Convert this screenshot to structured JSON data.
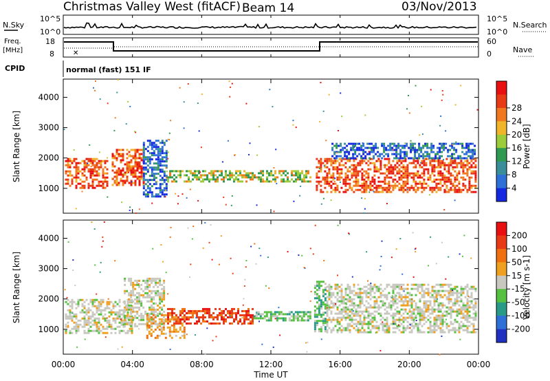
{
  "header": {
    "station": "Christmas Valley West (fitACF)",
    "beam": "Beam 14",
    "date": "03/Nov/2013"
  },
  "status_panels": {
    "nsky_label": "N.Sky",
    "nsky_ticks": [
      "10^5",
      "10^0"
    ],
    "nsearch_label": "N.Search",
    "nsearch_ticks": [
      "10^5",
      "10^0"
    ],
    "freq_label_1": "Freq.",
    "freq_label_2": "[MHz]",
    "freq_ticks": [
      "18",
      "8"
    ],
    "nave_label": "Nave",
    "nave_ticks": [
      "60",
      "0"
    ],
    "cpid_label": "CPID",
    "cpid_value": "normal (fast) 151 IF"
  },
  "chart_data": [
    {
      "type": "heatmap",
      "name": "power",
      "ylabel": "Slant Range [km]",
      "ylim": [
        180,
        4600
      ],
      "yticks": [
        1000,
        2000,
        3000,
        4000
      ],
      "xlim": [
        0,
        24
      ],
      "colorbar": {
        "label": "Power [dB]",
        "ticks": [
          "4",
          "8",
          "12",
          "16",
          "20",
          "24",
          "28"
        ],
        "colors": [
          "#1428e0",
          "#2e6fd8",
          "#3a8e9a",
          "#2f9a50",
          "#9dcc3a",
          "#f0b52a",
          "#f0781e",
          "#e83a14",
          "#e81010"
        ]
      },
      "echo_bands": [
        {
          "t0": 0.1,
          "t1": 2.5,
          "r0": 1000,
          "r1": 2000,
          "level": "high"
        },
        {
          "t0": 2.8,
          "t1": 4.6,
          "r0": 1100,
          "r1": 2300,
          "level": "high"
        },
        {
          "t0": 4.6,
          "t1": 6.0,
          "r0": 700,
          "r1": 2600,
          "level": "low"
        },
        {
          "t0": 6.0,
          "t1": 14.3,
          "r0": 1200,
          "r1": 1600,
          "level": "mid"
        },
        {
          "t0": 14.6,
          "t1": 23.8,
          "r0": 900,
          "r1": 2000,
          "level": "high"
        },
        {
          "t0": 15.5,
          "t1": 23.8,
          "r0": 2000,
          "r1": 2500,
          "level": "low"
        }
      ]
    },
    {
      "type": "heatmap",
      "name": "velocity",
      "ylabel": "Slant Range [km]",
      "xlabel": "Time UT",
      "ylim": [
        180,
        4600
      ],
      "yticks": [
        1000,
        2000,
        3000,
        4000
      ],
      "xlim": [
        0,
        24
      ],
      "xticks": [
        "00:00",
        "04:00",
        "08:00",
        "12:00",
        "16:00",
        "20:00",
        "00:00"
      ],
      "colorbar": {
        "label": "Velocity [m s-1]",
        "ticks": [
          "200",
          "100",
          "50",
          "15",
          "-15",
          "-50",
          "-100",
          "-200"
        ],
        "colors": [
          "#2030c0",
          "#2e6fd8",
          "#2a9a88",
          "#56c040",
          "#c8c8c0",
          "#f0a020",
          "#f07010",
          "#e83a14",
          "#e81010"
        ]
      },
      "echo_bands": [
        {
          "t0": 0.1,
          "t1": 4.0,
          "r0": 900,
          "r1": 2000,
          "level": "grey"
        },
        {
          "t0": 3.5,
          "t1": 5.8,
          "r0": 1100,
          "r1": 2700,
          "level": "grey"
        },
        {
          "t0": 4.8,
          "t1": 7.0,
          "r0": 700,
          "r1": 1500,
          "level": "orange"
        },
        {
          "t0": 6.0,
          "t1": 11.0,
          "r0": 1200,
          "r1": 1700,
          "level": "red"
        },
        {
          "t0": 11.0,
          "t1": 14.3,
          "r0": 1300,
          "r1": 1600,
          "level": "green"
        },
        {
          "t0": 14.5,
          "t1": 15.2,
          "r0": 900,
          "r1": 2600,
          "level": "green"
        },
        {
          "t0": 15.2,
          "t1": 23.8,
          "r0": 900,
          "r1": 2500,
          "level": "grey"
        }
      ]
    }
  ]
}
